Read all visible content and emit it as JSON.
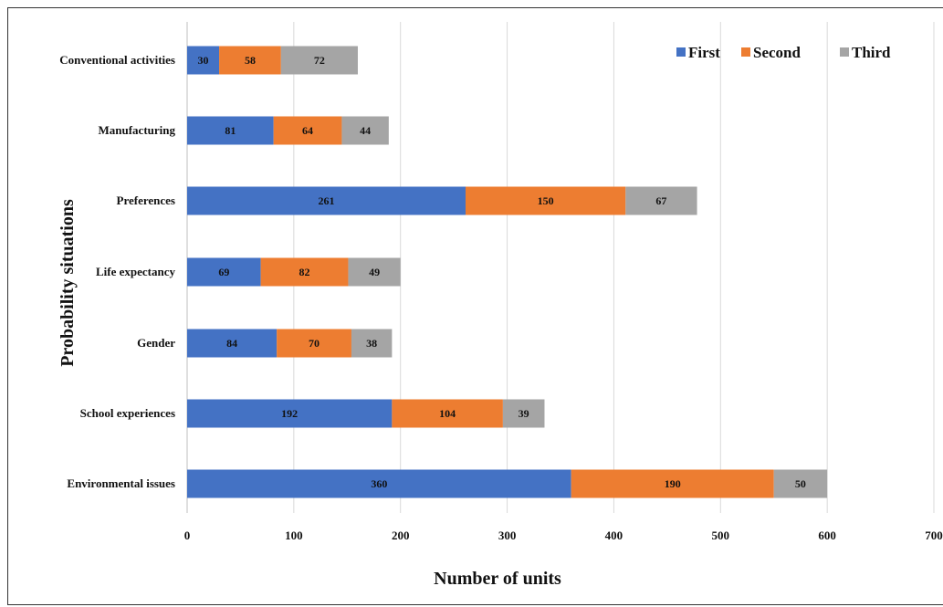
{
  "chart_data": {
    "type": "bar",
    "orientation": "horizontal",
    "stacked": true,
    "title": "",
    "xlabel": "Number of units",
    "ylabel": "Probability situations",
    "xlim": [
      0,
      700
    ],
    "xticks": [
      "0",
      "100",
      "200",
      "300",
      "400",
      "500",
      "600",
      "700"
    ],
    "grid": "vertical",
    "legend_position": "top-right",
    "categories": [
      "Conventional activities",
      "Manufacturing",
      "Preferences",
      "Life expectancy",
      "Gender",
      "School experiences",
      "Environmental issues"
    ],
    "series": [
      {
        "name": "First",
        "color": "#4472C4",
        "values": [
          30,
          81,
          261,
          69,
          84,
          192,
          360
        ]
      },
      {
        "name": "Second",
        "color": "#ED7D31",
        "values": [
          58,
          64,
          150,
          82,
          70,
          104,
          190
        ]
      },
      {
        "name": "Third",
        "color": "#A5A5A5",
        "values": [
          72,
          44,
          67,
          49,
          38,
          39,
          50
        ]
      }
    ]
  }
}
